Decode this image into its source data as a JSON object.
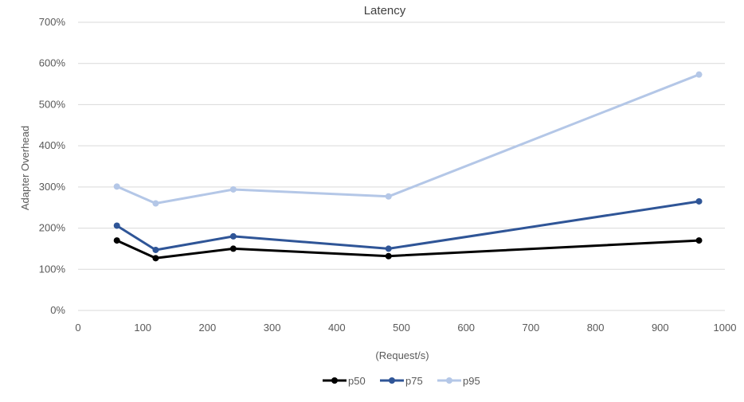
{
  "chart_data": {
    "type": "line",
    "title": "Latency",
    "xlabel": "(Request/s)",
    "ylabel": "Adapter Overhead",
    "xlim": [
      0,
      1000
    ],
    "ylim": [
      0,
      700
    ],
    "x_ticks": [
      "0",
      "100",
      "200",
      "300",
      "400",
      "500",
      "600",
      "700",
      "800",
      "900",
      "1000"
    ],
    "y_ticks": [
      "0%",
      "100%",
      "200%",
      "300%",
      "400%",
      "500%",
      "600%",
      "700%"
    ],
    "grid": "horizontal",
    "legend_position": "bottom",
    "x": [
      60,
      120,
      240,
      480,
      960
    ],
    "series": [
      {
        "name": "p50",
        "color": "#000000",
        "values": [
          170,
          127,
          150,
          132,
          170
        ]
      },
      {
        "name": "p75",
        "color": "#2f5597",
        "values": [
          206,
          147,
          180,
          150,
          265
        ]
      },
      {
        "name": "p95",
        "color": "#b4c7e7",
        "values": [
          301,
          260,
          294,
          277,
          573
        ]
      }
    ]
  }
}
